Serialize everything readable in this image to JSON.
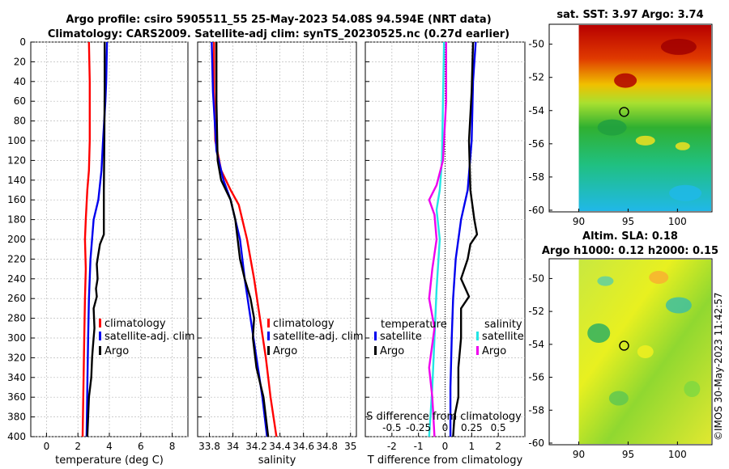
{
  "title": {
    "line1": "Argo profile: csiro 5905511_55 25-May-2023 54.08S 94.594E (NRT data)",
    "line2": "Climatology: CARS2009. Satellite-adj clim: synTS_20230525.nc (0.27d earlier)"
  },
  "watermark": "©IMOS 30-May-2023 11:42:57",
  "colors": {
    "climatology": "#ff0000",
    "satellite": "#0000ee",
    "argo": "#000000",
    "sat_salinity": "#22e5e5",
    "argo_salinity": "#ee00ee"
  },
  "chart_data": [
    {
      "type": "line",
      "name": "temperature",
      "xlabel": "temperature (deg C)",
      "xlim": [
        -1,
        9
      ],
      "ylim": [
        0,
        400
      ],
      "yticks": [
        "0",
        "20",
        "40",
        "60",
        "80",
        "100",
        "120",
        "140",
        "160",
        "180",
        "200",
        "220",
        "240",
        "260",
        "280",
        "300",
        "320",
        "340",
        "360",
        "380",
        "400"
      ],
      "xticks": [
        "0",
        "2",
        "4",
        "6",
        "8"
      ],
      "xtick_values": [
        0,
        2,
        4,
        6,
        8
      ],
      "legend": [
        "climatology",
        "satellite-adj. clim",
        "Argo"
      ],
      "series": [
        {
          "name": "climatology",
          "color": "#ff0000",
          "points": [
            [
              2.7,
              0
            ],
            [
              2.75,
              40
            ],
            [
              2.75,
              100
            ],
            [
              2.7,
              130
            ],
            [
              2.6,
              150
            ],
            [
              2.5,
              180
            ],
            [
              2.45,
              200
            ],
            [
              2.5,
              230
            ],
            [
              2.45,
              260
            ],
            [
              2.4,
              300
            ],
            [
              2.35,
              350
            ],
            [
              2.3,
              400
            ]
          ]
        },
        {
          "name": "satellite-adj. clim",
          "color": "#0000ee",
          "points": [
            [
              3.85,
              0
            ],
            [
              3.8,
              40
            ],
            [
              3.75,
              60
            ],
            [
              3.6,
              100
            ],
            [
              3.5,
              130
            ],
            [
              3.3,
              160
            ],
            [
              3.0,
              180
            ],
            [
              2.8,
              220
            ],
            [
              2.7,
              260
            ],
            [
              2.65,
              300
            ],
            [
              2.6,
              350
            ],
            [
              2.55,
              400
            ]
          ]
        },
        {
          "name": "Argo",
          "color": "#000000",
          "points": [
            [
              3.7,
              0
            ],
            [
              3.7,
              50
            ],
            [
              3.68,
              100
            ],
            [
              3.65,
              150
            ],
            [
              3.65,
              195
            ],
            [
              3.4,
              205
            ],
            [
              3.3,
              215
            ],
            [
              3.2,
              225
            ],
            [
              3.25,
              240
            ],
            [
              3.15,
              250
            ],
            [
              3.2,
              258
            ],
            [
              3.0,
              270
            ],
            [
              3.05,
              290
            ],
            [
              2.95,
              310
            ],
            [
              2.9,
              320
            ],
            [
              2.85,
              340
            ],
            [
              2.7,
              360
            ],
            [
              2.65,
              380
            ],
            [
              2.6,
              400
            ]
          ]
        }
      ]
    },
    {
      "type": "line",
      "name": "salinity",
      "xlabel": "salinity",
      "xlim": [
        33.7,
        35.05
      ],
      "ylim": [
        0,
        400
      ],
      "xticks": [
        "33.8",
        "34",
        "34.2",
        "34.4",
        "34.6",
        "34.8",
        "35"
      ],
      "xtick_values": [
        33.8,
        34.0,
        34.2,
        34.4,
        34.6,
        34.8,
        35.0
      ],
      "legend": [
        "climatology",
        "satellite-adj. clim",
        "Argo"
      ],
      "series": [
        {
          "name": "climatology",
          "color": "#ff0000",
          "points": [
            [
              33.84,
              0
            ],
            [
              33.84,
              50
            ],
            [
              33.85,
              100
            ],
            [
              33.9,
              130
            ],
            [
              33.98,
              150
            ],
            [
              34.05,
              165
            ],
            [
              34.12,
              200
            ],
            [
              34.18,
              240
            ],
            [
              34.23,
              280
            ],
            [
              34.28,
              320
            ],
            [
              34.32,
              360
            ],
            [
              34.37,
              400
            ]
          ]
        },
        {
          "name": "satellite-adj. clim",
          "color": "#0000ee",
          "points": [
            [
              33.82,
              0
            ],
            [
              33.83,
              50
            ],
            [
              33.86,
              110
            ],
            [
              33.92,
              140
            ],
            [
              33.98,
              160
            ],
            [
              34.02,
              180
            ],
            [
              34.06,
              200
            ],
            [
              34.1,
              240
            ],
            [
              34.15,
              280
            ],
            [
              34.2,
              320
            ],
            [
              34.25,
              360
            ],
            [
              34.29,
              400
            ]
          ]
        },
        {
          "name": "Argo",
          "color": "#000000",
          "points": [
            [
              33.86,
              0
            ],
            [
              33.86,
              60
            ],
            [
              33.87,
              120
            ],
            [
              33.9,
              140
            ],
            [
              33.98,
              160
            ],
            [
              34.02,
              180
            ],
            [
              34.04,
              200
            ],
            [
              34.06,
              220
            ],
            [
              34.1,
              240
            ],
            [
              34.15,
              260
            ],
            [
              34.18,
              280
            ],
            [
              34.17,
              300
            ],
            [
              34.2,
              330
            ],
            [
              34.26,
              360
            ],
            [
              34.3,
              400
            ]
          ]
        }
      ]
    },
    {
      "type": "line",
      "name": "difference",
      "xlabel": "T difference from climatology",
      "xlabel_top": "S difference from climatology",
      "xlim": [
        -3,
        3
      ],
      "s_xlim": [
        -0.75,
        0.75
      ],
      "ylim": [
        0,
        400
      ],
      "xticks": [
        "-2",
        "-1",
        "0",
        "1",
        "2"
      ],
      "xtick_values": [
        -2,
        -1,
        0,
        1,
        2
      ],
      "s_xticks": [
        "-0.5",
        "-0.25",
        "0",
        "0.25",
        "0.5"
      ],
      "s_xtick_values": [
        -0.5,
        -0.25,
        0,
        0.25,
        0.5
      ],
      "legend_temperature_title": "temperature",
      "legend_salinity_title": "salinity",
      "legend_temperature": [
        "satellite",
        "Argo"
      ],
      "legend_salinity": [
        "satellite",
        "Argo"
      ],
      "series": [
        {
          "name": "T satellite",
          "color": "#0000ee",
          "points": [
            [
              1.15,
              0
            ],
            [
              1.05,
              40
            ],
            [
              1.0,
              100
            ],
            [
              0.85,
              150
            ],
            [
              0.6,
              180
            ],
            [
              0.4,
              220
            ],
            [
              0.3,
              260
            ],
            [
              0.25,
              300
            ],
            [
              0.2,
              350
            ],
            [
              0.2,
              400
            ]
          ]
        },
        {
          "name": "T Argo",
          "color": "#000000",
          "points": [
            [
              1.05,
              0
            ],
            [
              1.0,
              50
            ],
            [
              0.9,
              100
            ],
            [
              0.95,
              150
            ],
            [
              1.1,
              180
            ],
            [
              1.2,
              195
            ],
            [
              0.95,
              205
            ],
            [
              0.85,
              220
            ],
            [
              0.6,
              240
            ],
            [
              0.9,
              258
            ],
            [
              0.6,
              270
            ],
            [
              0.6,
              300
            ],
            [
              0.5,
              330
            ],
            [
              0.5,
              360
            ],
            [
              0.35,
              380
            ],
            [
              0.3,
              400
            ]
          ]
        },
        {
          "name": "S satellite",
          "color": "#22e5e5",
          "points": [
            [
              -0.01,
              0
            ],
            [
              -0.02,
              60
            ],
            [
              -0.03,
              120
            ],
            [
              -0.05,
              150
            ],
            [
              -0.08,
              170
            ],
            [
              -0.05,
              200
            ],
            [
              -0.08,
              250
            ],
            [
              -0.1,
              300
            ],
            [
              -0.12,
              350
            ],
            [
              -0.15,
              400
            ]
          ]
        },
        {
          "name": "S Argo",
          "color": "#ee00ee",
          "points": [
            [
              0.01,
              0
            ],
            [
              0.01,
              60
            ],
            [
              -0.02,
              120
            ],
            [
              -0.08,
              145
            ],
            [
              -0.15,
              160
            ],
            [
              -0.1,
              175
            ],
            [
              -0.08,
              200
            ],
            [
              -0.12,
              230
            ],
            [
              -0.15,
              260
            ],
            [
              -0.1,
              290
            ],
            [
              -0.15,
              330
            ],
            [
              -0.12,
              360
            ],
            [
              -0.1,
              400
            ]
          ]
        }
      ]
    },
    {
      "type": "heatmap",
      "name": "sst-map",
      "title": "sat. SST: 3.97 Argo: 3.74",
      "xlim": [
        87,
        103.5
      ],
      "ylim": [
        -60.1,
        -48.8
      ],
      "xticks": [
        "90",
        "95",
        "100"
      ],
      "xtick_values": [
        90,
        95,
        100
      ],
      "yticks": [
        "-50",
        "-52",
        "-54",
        "-56",
        "-58",
        "-60"
      ],
      "ytick_values": [
        -50,
        -52,
        -54,
        -56,
        -58,
        -60
      ],
      "marker": [
        94.594,
        -54.08
      ]
    },
    {
      "type": "heatmap",
      "name": "sla-map",
      "title_line1": "Altim. SLA: 0.18",
      "title_line2": "Argo h1000: 0.12 h2000: 0.15",
      "xlim": [
        87,
        103.5
      ],
      "ylim": [
        -60.1,
        -48.8
      ],
      "xticks": [
        "90",
        "95",
        "100"
      ],
      "xtick_values": [
        90,
        95,
        100
      ],
      "yticks": [
        "-50",
        "-52",
        "-54",
        "-56",
        "-58",
        "-60"
      ],
      "ytick_values": [
        -50,
        -52,
        -54,
        -56,
        -58,
        -60
      ],
      "marker": [
        94.594,
        -54.08
      ]
    }
  ]
}
